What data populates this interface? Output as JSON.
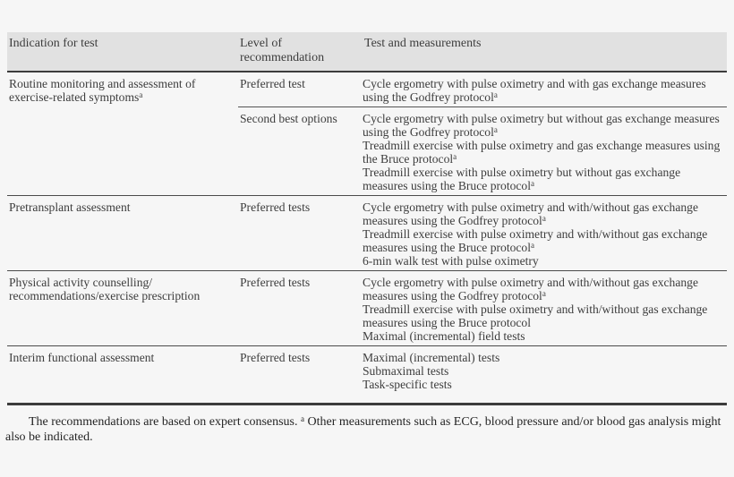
{
  "colors": {
    "page_background": "#f6f6f6",
    "header_band": "#e1e1e1",
    "rule_dark": "#3c3c3c",
    "text": "#3d3d3d"
  },
  "table": {
    "header": {
      "col1": "Indication for test",
      "col2": "Level of recommendation",
      "col3": "Test and measurements"
    },
    "sections": [
      {
        "indication": {
          "text": "Routine monitoring and assessment of exercise-related symptoms",
          "sup": "a"
        },
        "subrows": [
          {
            "level": "Preferred test",
            "tests": [
              {
                "text": "Cycle ergometry with pulse oximetry and with gas exchange measures using the Godfrey protocol",
                "sup": "a"
              }
            ]
          },
          {
            "level": "Second best options",
            "tests": [
              {
                "text": "Cycle ergometry with pulse oximetry but without gas exchange measures using the Godfrey protocol",
                "sup": "a"
              },
              {
                "text": "Treadmill exercise with pulse oximetry and gas exchange measures using the Bruce protocol",
                "sup": "a"
              },
              {
                "text": "Treadmill exercise with pulse oximetry but without gas exchange measures using the Bruce protocol",
                "sup": "a"
              }
            ]
          }
        ]
      },
      {
        "indication": {
          "text": "Pretransplant assessment",
          "sup": ""
        },
        "subrows": [
          {
            "level": "Preferred tests",
            "tests": [
              {
                "text": "Cycle ergometry with pulse oximetry and with/without gas exchange measures using the Godfrey protocol",
                "sup": "a"
              },
              {
                "text": "Treadmill exercise with pulse oximetry and with/without gas exchange measures using the Bruce protocol",
                "sup": "a"
              },
              {
                "text": "6-min walk test with pulse oximetry",
                "sup": ""
              }
            ]
          }
        ]
      },
      {
        "indication": {
          "text": "Physical activity counselling/ recommendations/exercise prescription",
          "sup": ""
        },
        "subrows": [
          {
            "level": "Preferred tests",
            "tests": [
              {
                "text": "Cycle ergometry with pulse oximetry and with/without gas exchange measures using the Godfrey protocol",
                "sup": "a"
              },
              {
                "text": "Treadmill exercise with pulse oximetry and with/without gas exchange measures using the Bruce protocol",
                "sup": ""
              },
              {
                "text": "Maximal (incremental) field tests",
                "sup": ""
              }
            ]
          }
        ]
      },
      {
        "indication": {
          "text": "Interim functional assessment",
          "sup": ""
        },
        "subrows": [
          {
            "level": "Preferred tests",
            "tests": [
              {
                "text": "Maximal (incremental) tests",
                "sup": ""
              },
              {
                "text": "Submaximal tests",
                "sup": ""
              },
              {
                "text": "Task-specific tests",
                "sup": ""
              }
            ]
          }
        ]
      }
    ]
  },
  "footnote": {
    "before": "The recommendations are based on expert consensus.",
    "sup": "a",
    "after": "Other measurements such as ECG, blood pressure and/or blood gas analysis might also be indicated."
  }
}
